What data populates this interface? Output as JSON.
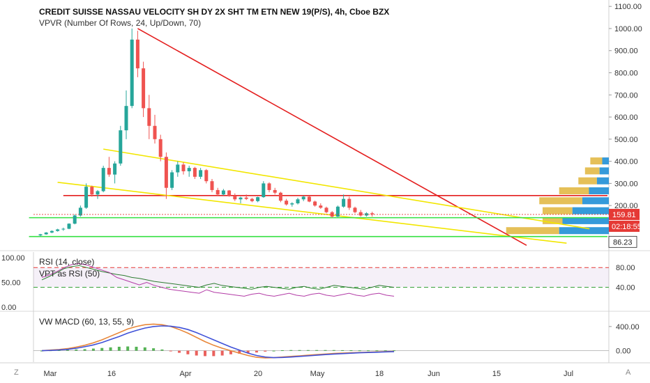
{
  "header": {
    "title": "CREDIT SUISSE NASSAU VELOCITY SH DY 2X SHT TM ETN NEW 19(P/S), 4h, Cboe BZX",
    "indicator": "VPVR (Number Of Rows, 24, Up/Down, 70)"
  },
  "rsi_pane": {
    "legend1": "RSI (14, close)",
    "legend2": "VPT as RSI (50)",
    "right_ticks": [
      "80.00",
      "40.00"
    ],
    "left_ticks": [
      "100.00",
      "50.00",
      "0.00"
    ]
  },
  "macd_pane": {
    "legend": "VW MACD (60, 13, 55, 9)",
    "right_ticks": [
      "400.00",
      "0.00"
    ]
  },
  "corner": {
    "bottom_left": "Z",
    "bottom_right": "A"
  },
  "colors": {
    "up": "#26a69a",
    "down": "#ef5350",
    "red_line": "#e41e1e",
    "yellow_line": "#f2e600",
    "green_line": "#33e040",
    "macd_orange": "#e8873a",
    "macd_signal": "#3f51d8",
    "vp_up": "#1f8fd6",
    "vp_down": "#e1b53b",
    "vp_dark": "#5a4b3a",
    "price_label": "#e53935",
    "rsi_line": "#2e7d32",
    "vpt_line": "#b23aa6"
  },
  "chart_data": [
    {
      "type": "candlestick",
      "title": "CREDIT SUISSE NASSAU VELOCITY SH DY 2X SHT TM ETN NEW 19(P/S), 4h, Cboe BZX",
      "ylim": [
        40,
        1110
      ],
      "y_ticks": [
        "1100.00",
        "1000.00",
        "900.00",
        "800.00",
        "700.00",
        "600.00",
        "500.00",
        "400.00",
        "300.00",
        "200.00"
      ],
      "x_ticks": [
        "Mar",
        "16",
        "Apr",
        "20",
        "May",
        "18",
        "Jun",
        "15",
        "Jul"
      ],
      "price_labels": {
        "last": "159.81",
        "countdown": "02:18:55",
        "level": "86.23"
      },
      "candles": [
        {
          "i": 0,
          "o": 65,
          "h": 72,
          "l": 60,
          "c": 70
        },
        {
          "i": 1,
          "o": 70,
          "h": 80,
          "l": 68,
          "c": 78
        },
        {
          "i": 2,
          "o": 78,
          "h": 88,
          "l": 75,
          "c": 85
        },
        {
          "i": 3,
          "o": 85,
          "h": 95,
          "l": 82,
          "c": 92
        },
        {
          "i": 4,
          "o": 92,
          "h": 100,
          "l": 86,
          "c": 95
        },
        {
          "i": 5,
          "o": 95,
          "h": 120,
          "l": 93,
          "c": 118
        },
        {
          "i": 6,
          "o": 118,
          "h": 160,
          "l": 115,
          "c": 155
        },
        {
          "i": 7,
          "o": 155,
          "h": 200,
          "l": 150,
          "c": 190
        },
        {
          "i": 8,
          "o": 190,
          "h": 300,
          "l": 185,
          "c": 285
        },
        {
          "i": 9,
          "o": 285,
          "h": 290,
          "l": 240,
          "c": 250
        },
        {
          "i": 10,
          "o": 250,
          "h": 270,
          "l": 230,
          "c": 265
        },
        {
          "i": 11,
          "o": 265,
          "h": 380,
          "l": 260,
          "c": 370
        },
        {
          "i": 12,
          "o": 370,
          "h": 420,
          "l": 330,
          "c": 340
        },
        {
          "i": 13,
          "o": 340,
          "h": 400,
          "l": 300,
          "c": 390
        },
        {
          "i": 14,
          "o": 390,
          "h": 560,
          "l": 380,
          "c": 540
        },
        {
          "i": 15,
          "o": 540,
          "h": 720,
          "l": 500,
          "c": 650
        },
        {
          "i": 16,
          "o": 650,
          "h": 1000,
          "l": 640,
          "c": 950
        },
        {
          "i": 17,
          "o": 950,
          "h": 990,
          "l": 780,
          "c": 820
        },
        {
          "i": 18,
          "o": 820,
          "h": 850,
          "l": 600,
          "c": 640
        },
        {
          "i": 19,
          "o": 640,
          "h": 700,
          "l": 500,
          "c": 560
        },
        {
          "i": 20,
          "o": 560,
          "h": 610,
          "l": 480,
          "c": 500
        },
        {
          "i": 21,
          "o": 500,
          "h": 520,
          "l": 400,
          "c": 420
        },
        {
          "i": 22,
          "o": 420,
          "h": 440,
          "l": 230,
          "c": 280
        },
        {
          "i": 23,
          "o": 280,
          "h": 360,
          "l": 270,
          "c": 350
        },
        {
          "i": 24,
          "o": 350,
          "h": 400,
          "l": 330,
          "c": 385
        },
        {
          "i": 25,
          "o": 385,
          "h": 395,
          "l": 340,
          "c": 355
        },
        {
          "i": 26,
          "o": 355,
          "h": 380,
          "l": 330,
          "c": 370
        },
        {
          "i": 27,
          "o": 370,
          "h": 375,
          "l": 320,
          "c": 330
        },
        {
          "i": 28,
          "o": 330,
          "h": 370,
          "l": 320,
          "c": 360
        },
        {
          "i": 29,
          "o": 360,
          "h": 365,
          "l": 300,
          "c": 310
        },
        {
          "i": 30,
          "o": 310,
          "h": 320,
          "l": 260,
          "c": 270
        },
        {
          "i": 31,
          "o": 270,
          "h": 280,
          "l": 245,
          "c": 250
        },
        {
          "i": 32,
          "o": 250,
          "h": 275,
          "l": 245,
          "c": 268
        },
        {
          "i": 33,
          "o": 268,
          "h": 270,
          "l": 240,
          "c": 245
        },
        {
          "i": 34,
          "o": 245,
          "h": 255,
          "l": 220,
          "c": 228
        },
        {
          "i": 35,
          "o": 228,
          "h": 240,
          "l": 210,
          "c": 236
        },
        {
          "i": 36,
          "o": 236,
          "h": 250,
          "l": 225,
          "c": 230
        },
        {
          "i": 37,
          "o": 230,
          "h": 235,
          "l": 215,
          "c": 220
        },
        {
          "i": 38,
          "o": 220,
          "h": 240,
          "l": 215,
          "c": 238
        },
        {
          "i": 39,
          "o": 238,
          "h": 310,
          "l": 235,
          "c": 300
        },
        {
          "i": 40,
          "o": 300,
          "h": 305,
          "l": 260,
          "c": 270
        },
        {
          "i": 41,
          "o": 270,
          "h": 280,
          "l": 250,
          "c": 258
        },
        {
          "i": 42,
          "o": 258,
          "h": 262,
          "l": 215,
          "c": 222
        },
        {
          "i": 43,
          "o": 222,
          "h": 230,
          "l": 200,
          "c": 205
        },
        {
          "i": 44,
          "o": 205,
          "h": 215,
          "l": 195,
          "c": 210
        },
        {
          "i": 45,
          "o": 210,
          "h": 235,
          "l": 205,
          "c": 228
        },
        {
          "i": 46,
          "o": 228,
          "h": 245,
          "l": 220,
          "c": 240
        },
        {
          "i": 47,
          "o": 240,
          "h": 245,
          "l": 215,
          "c": 218
        },
        {
          "i": 48,
          "o": 218,
          "h": 222,
          "l": 195,
          "c": 200
        },
        {
          "i": 49,
          "o": 200,
          "h": 210,
          "l": 185,
          "c": 190
        },
        {
          "i": 50,
          "o": 190,
          "h": 195,
          "l": 165,
          "c": 170
        },
        {
          "i": 51,
          "o": 170,
          "h": 175,
          "l": 145,
          "c": 150
        },
        {
          "i": 52,
          "o": 150,
          "h": 200,
          "l": 148,
          "c": 195
        },
        {
          "i": 53,
          "o": 195,
          "h": 250,
          "l": 190,
          "c": 230
        },
        {
          "i": 54,
          "o": 230,
          "h": 240,
          "l": 180,
          "c": 190
        },
        {
          "i": 55,
          "o": 190,
          "h": 195,
          "l": 165,
          "c": 170
        },
        {
          "i": 56,
          "o": 170,
          "h": 180,
          "l": 150,
          "c": 155
        },
        {
          "i": 57,
          "o": 155,
          "h": 170,
          "l": 150,
          "c": 165
        },
        {
          "i": 58,
          "o": 165,
          "h": 172,
          "l": 150,
          "c": 159.81
        }
      ],
      "lines": [
        {
          "name": "red-downtrend",
          "color": "red",
          "from": {
            "i": 17,
            "p": 1000
          },
          "to": {
            "i": 85,
            "p": 20
          }
        },
        {
          "name": "red-horizontal",
          "color": "red",
          "from": {
            "i": 4,
            "p": 245
          },
          "to": {
            "i": 105,
            "p": 245
          }
        },
        {
          "name": "yellow-upper",
          "color": "yellow",
          "from": {
            "i": 11,
            "p": 455
          },
          "to": {
            "i": 96,
            "p": 95
          }
        },
        {
          "name": "yellow-lower",
          "color": "yellow",
          "from": {
            "i": 3,
            "p": 305
          },
          "to": {
            "i": 92,
            "p": 30
          }
        },
        {
          "name": "green-1",
          "color": "green",
          "from": {
            "i": -2,
            "p": 145
          },
          "to": {
            "i": 110,
            "p": 145
          }
        },
        {
          "name": "green-2",
          "color": "green",
          "from": {
            "i": -2,
            "p": 60
          },
          "to": {
            "i": 110,
            "p": 60
          }
        }
      ],
      "volume_profile": [
        {
          "p": 400,
          "up": 10,
          "down": 18
        },
        {
          "p": 355,
          "up": 14,
          "down": 22
        },
        {
          "p": 310,
          "up": 18,
          "down": 28
        },
        {
          "p": 265,
          "up": 30,
          "down": 45
        },
        {
          "p": 220,
          "up": 40,
          "down": 65
        },
        {
          "p": 175,
          "up": 55,
          "down": 45
        },
        {
          "p": 130,
          "up": 70,
          "down": 30
        },
        {
          "p": 85,
          "up": 75,
          "down": 80
        }
      ]
    },
    {
      "type": "line",
      "title": "RSI (14, close)",
      "ylim": [
        0,
        100
      ],
      "levels": [
        80,
        40
      ],
      "series": [
        {
          "name": "RSI (14, close)",
          "values": [
            55,
            62,
            70,
            78,
            82,
            84,
            80,
            76,
            72,
            69,
            66,
            64,
            60,
            58,
            55,
            52,
            50,
            48,
            46,
            44,
            42,
            40,
            45,
            48,
            44,
            42,
            40,
            38,
            36,
            40,
            42,
            40,
            38,
            36,
            40,
            42,
            38,
            36,
            40,
            44,
            42,
            40,
            38,
            36,
            40,
            44,
            42,
            40
          ]
        },
        {
          "name": "VPT as RSI (50)",
          "values": [
            60,
            65,
            72,
            80,
            86,
            88,
            85,
            80,
            75,
            70,
            60,
            55,
            50,
            45,
            50,
            44,
            40,
            36,
            34,
            32,
            30,
            28,
            35,
            30,
            28,
            26,
            24,
            22,
            26,
            28,
            24,
            22,
            25,
            28,
            24,
            22,
            26,
            28,
            24,
            22,
            25,
            28,
            24,
            22,
            26,
            28,
            24,
            22
          ]
        }
      ]
    },
    {
      "type": "bar",
      "title": "VW MACD (60, 13, 55, 9)",
      "ylim": [
        -120,
        560
      ],
      "series": [
        {
          "name": "macd",
          "values": [
            0,
            10,
            20,
            35,
            60,
            90,
            130,
            180,
            240,
            300,
            360,
            400,
            430,
            440,
            430,
            400,
            350,
            290,
            220,
            150,
            90,
            40,
            0,
            -40,
            -80,
            -110,
            -120,
            -115,
            -105,
            -95,
            -85,
            -75,
            -65,
            -55,
            -45,
            -40,
            -35,
            -30,
            -25,
            -20,
            -15,
            -10
          ]
        },
        {
          "name": "signal",
          "values": [
            0,
            5,
            12,
            22,
            40,
            65,
            95,
            135,
            185,
            235,
            290,
            335,
            375,
            400,
            410,
            405,
            385,
            350,
            300,
            240,
            180,
            120,
            60,
            10,
            -40,
            -80,
            -105,
            -115,
            -112,
            -105,
            -95,
            -85,
            -75,
            -65,
            -55,
            -48,
            -42,
            -35,
            -30,
            -25,
            -20,
            -15
          ]
        },
        {
          "name": "hist",
          "values": [
            0,
            5,
            8,
            13,
            20,
            25,
            35,
            45,
            55,
            65,
            70,
            65,
            55,
            40,
            20,
            -5,
            -35,
            -60,
            -80,
            -90,
            -90,
            -80,
            -60,
            -50,
            -40,
            -30,
            -15,
            0,
            7,
            10,
            10,
            10,
            10,
            10,
            10,
            8,
            7,
            5,
            5,
            5,
            5,
            5
          ]
        }
      ]
    }
  ]
}
